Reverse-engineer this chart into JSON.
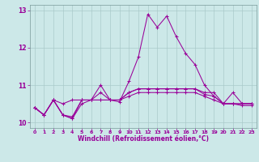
{
  "xlabel": "Windchill (Refroidissement éolien,°C)",
  "bg_color": "#cce8e8",
  "grid_color": "#aacaca",
  "line_color": "#990099",
  "xlim": [
    -0.5,
    23.5
  ],
  "ylim": [
    9.85,
    13.15
  ],
  "xticks": [
    0,
    1,
    2,
    3,
    4,
    5,
    6,
    7,
    8,
    9,
    10,
    11,
    12,
    13,
    14,
    15,
    16,
    17,
    18,
    19,
    20,
    21,
    22,
    23
  ],
  "yticks": [
    10,
    11,
    12,
    13
  ],
  "series": [
    [
      10.4,
      10.2,
      10.6,
      10.2,
      10.1,
      10.6,
      10.6,
      11.0,
      10.6,
      10.55,
      11.1,
      11.75,
      12.9,
      12.55,
      12.85,
      12.3,
      11.85,
      11.55,
      11.0,
      10.7,
      10.5,
      10.8,
      10.5,
      10.5
    ],
    [
      10.4,
      10.2,
      10.6,
      10.5,
      10.6,
      10.6,
      10.6,
      10.6,
      10.6,
      10.6,
      10.8,
      10.9,
      10.9,
      10.9,
      10.9,
      10.9,
      10.9,
      10.9,
      10.8,
      10.8,
      10.5,
      10.5,
      10.5,
      10.5
    ],
    [
      10.4,
      10.2,
      10.6,
      10.2,
      10.15,
      10.6,
      10.6,
      10.8,
      10.6,
      10.6,
      10.8,
      10.9,
      10.9,
      10.9,
      10.9,
      10.9,
      10.9,
      10.9,
      10.75,
      10.7,
      10.5,
      10.5,
      10.5,
      10.5
    ],
    [
      10.4,
      10.2,
      10.6,
      10.2,
      10.1,
      10.5,
      10.6,
      10.6,
      10.6,
      10.6,
      10.7,
      10.8,
      10.8,
      10.8,
      10.8,
      10.8,
      10.8,
      10.8,
      10.7,
      10.6,
      10.5,
      10.5,
      10.45,
      10.45
    ]
  ]
}
